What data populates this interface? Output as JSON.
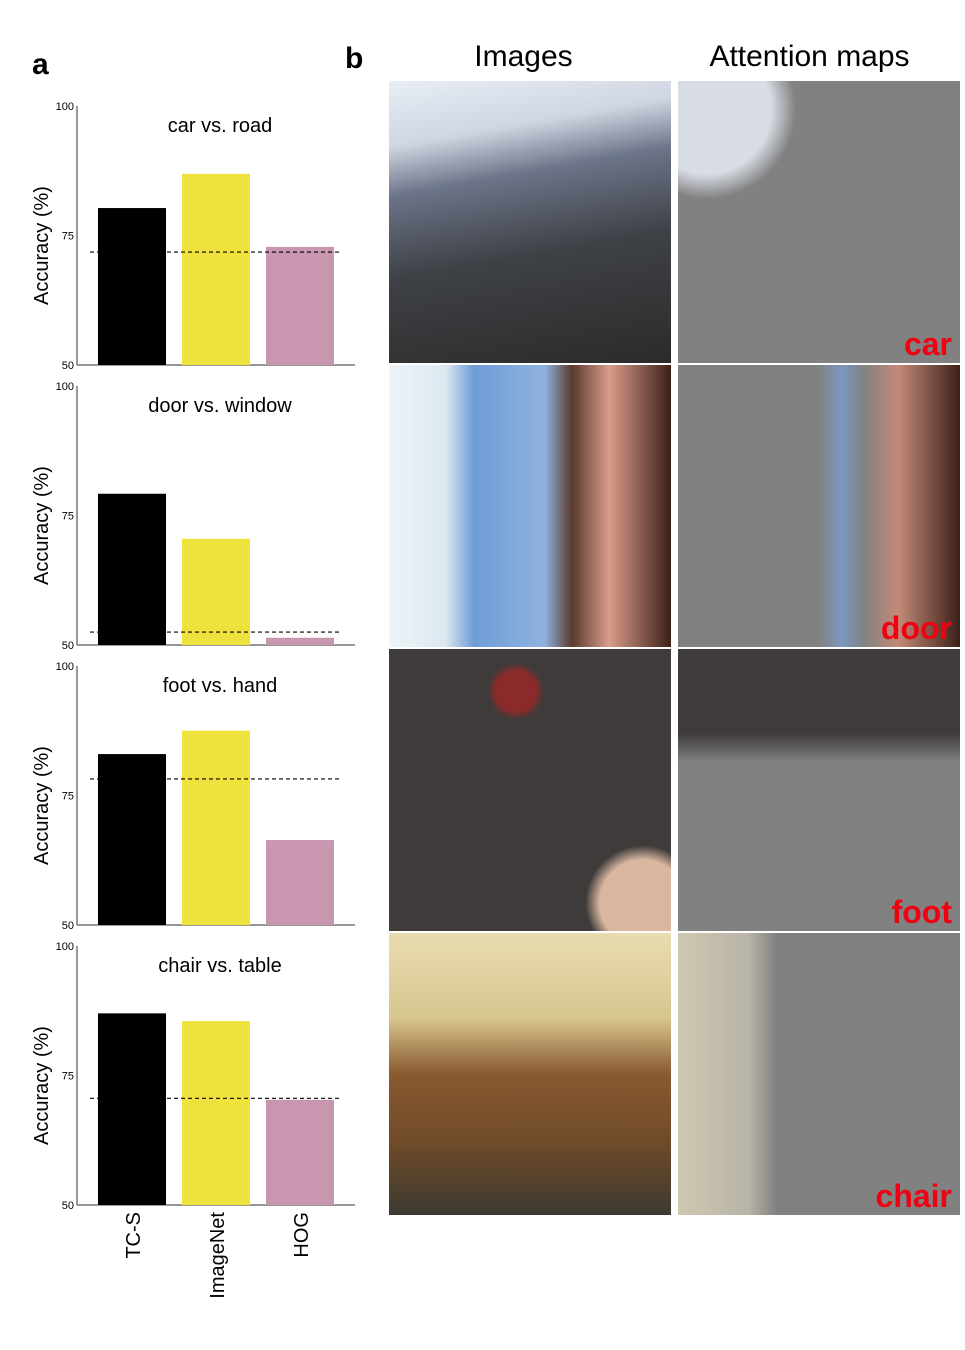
{
  "panel_labels": {
    "a": "a",
    "b": "b"
  },
  "columns": {
    "images": "Images",
    "attention": "Attention maps"
  },
  "chart_data": [
    {
      "type": "bar",
      "title": "car vs. road",
      "ylabel": "Accuracy (%)",
      "ylim": [
        50,
        100
      ],
      "yticks": [
        "50",
        "75",
        "100"
      ],
      "categories": [
        "TC-S",
        "ImageNet",
        "HOG"
      ],
      "values": [
        80.3,
        86.9,
        72.8
      ],
      "baseline": 71.8
    },
    {
      "type": "bar",
      "title": "door vs. window",
      "ylabel": "Accuracy (%)",
      "ylim": [
        50,
        100
      ],
      "yticks": [
        "50",
        "75",
        "100"
      ],
      "categories": [
        "TC-S",
        "ImageNet",
        "HOG"
      ],
      "values": [
        79.2,
        70.5,
        51.4
      ],
      "baseline": 52.5
    },
    {
      "type": "bar",
      "title": "foot vs. hand",
      "ylabel": "Accuracy (%)",
      "ylim": [
        50,
        100
      ],
      "yticks": [
        "50",
        "75",
        "100"
      ],
      "categories": [
        "TC-S",
        "ImageNet",
        "HOG"
      ],
      "values": [
        83.0,
        87.5,
        66.4
      ],
      "baseline": 78.2
    },
    {
      "type": "bar",
      "title": "chair vs. table",
      "ylabel": "Accuracy (%)",
      "ylim": [
        50,
        100
      ],
      "yticks": [
        "50",
        "75",
        "100"
      ],
      "categories": [
        "TC-S",
        "ImageNet",
        "HOG"
      ],
      "values": [
        87.0,
        85.5,
        70.3
      ],
      "baseline": 70.6
    }
  ],
  "bar_colors": [
    "#000000",
    "#f0e23c",
    "#c996b0"
  ],
  "rows": [
    {
      "label": "car"
    },
    {
      "label": "door"
    },
    {
      "label": "foot"
    },
    {
      "label": "chair"
    }
  ]
}
